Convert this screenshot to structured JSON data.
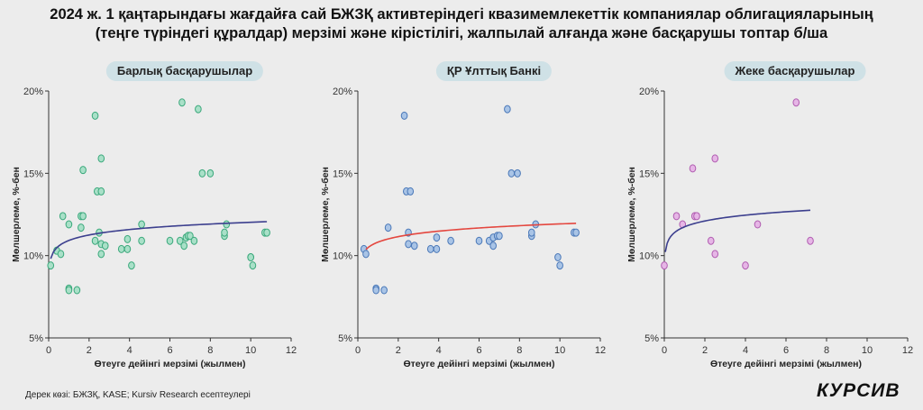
{
  "title_line1": "2024 ж. 1 қаңтарындағы жағдайға сай БЖЗҚ активтеріндегі квазимемлекеттік компаниялар облигацияларының",
  "title_line2": "(теңге түріндегі құралдар) мерзімі және кірістілігі, жалпылай алғанда және басқарушы топтар б/ша",
  "source": "Дерек көзі: БЖЗҚ, KASE; Kursiv Research есептеулері",
  "logo": "КУРСИВ",
  "chart_data": [
    {
      "type": "scatter",
      "title": "Барлық басқарушылар",
      "xlabel": "Өтеуге дейінгі мерзімі (жылмен)",
      "ylabel": "Мөлшерлеме, %-бен",
      "xlim": [
        0,
        12
      ],
      "ylim": [
        5,
        20
      ],
      "xticks": [
        0,
        2,
        4,
        6,
        8,
        10,
        12
      ],
      "yticks": [
        5,
        10,
        15,
        20
      ],
      "ytick_labels": [
        "5%",
        "10%",
        "15%",
        "20%"
      ],
      "colors": {
        "marker_fill": "#a9e0c8",
        "marker_stroke": "#3aa87b",
        "trend": "#3c3f8e"
      },
      "points": [
        [
          0.1,
          9.4
        ],
        [
          0.4,
          10.3
        ],
        [
          0.6,
          10.1
        ],
        [
          0.7,
          12.4
        ],
        [
          1.0,
          11.9
        ],
        [
          1.0,
          8.0
        ],
        [
          1.0,
          7.9
        ],
        [
          1.4,
          7.9
        ],
        [
          1.6,
          11.7
        ],
        [
          1.6,
          12.4
        ],
        [
          1.7,
          12.4
        ],
        [
          1.7,
          15.2
        ],
        [
          2.3,
          18.5
        ],
        [
          2.3,
          10.9
        ],
        [
          2.4,
          13.9
        ],
        [
          2.5,
          11.4
        ],
        [
          2.6,
          13.9
        ],
        [
          2.6,
          15.9
        ],
        [
          2.6,
          10.7
        ],
        [
          2.6,
          10.1
        ],
        [
          2.8,
          10.6
        ],
        [
          3.6,
          10.4
        ],
        [
          3.9,
          10.4
        ],
        [
          3.9,
          11.0
        ],
        [
          4.1,
          9.4
        ],
        [
          4.6,
          10.9
        ],
        [
          4.6,
          11.9
        ],
        [
          6.0,
          10.9
        ],
        [
          6.5,
          10.9
        ],
        [
          6.6,
          19.3
        ],
        [
          6.7,
          10.6
        ],
        [
          6.8,
          11.1
        ],
        [
          6.9,
          11.2
        ],
        [
          7.0,
          11.2
        ],
        [
          7.2,
          10.9
        ],
        [
          7.4,
          18.9
        ],
        [
          7.6,
          15.0
        ],
        [
          8.0,
          15.0
        ],
        [
          8.7,
          11.2
        ],
        [
          8.7,
          11.4
        ],
        [
          8.8,
          11.9
        ],
        [
          10.0,
          9.9
        ],
        [
          10.0,
          9.9
        ],
        [
          10.1,
          9.4
        ],
        [
          10.7,
          11.4
        ],
        [
          10.8,
          11.4
        ]
      ],
      "trend": {
        "xlim": [
          0.1,
          10.8
        ],
        "a": 10.92,
        "b": 0.48
      }
    },
    {
      "type": "scatter",
      "title": "ҚР Ұлттық Банкі",
      "xlabel": "Өтеуге дейінгі мерзімі (жылмен)",
      "ylabel": "Мөлшерлеме, %-бен",
      "xlim": [
        0,
        12
      ],
      "ylim": [
        5,
        20
      ],
      "xticks": [
        0,
        2,
        4,
        6,
        8,
        10,
        12
      ],
      "yticks": [
        5,
        10,
        15,
        20
      ],
      "ytick_labels": [
        "5%",
        "10%",
        "15%",
        "20%"
      ],
      "colors": {
        "marker_fill": "#a9c4e6",
        "marker_stroke": "#4a78b8",
        "trend": "#e4473f"
      },
      "points": [
        [
          0.3,
          10.4
        ],
        [
          0.4,
          10.1
        ],
        [
          0.9,
          8.0
        ],
        [
          0.9,
          7.9
        ],
        [
          1.3,
          7.9
        ],
        [
          1.5,
          11.7
        ],
        [
          2.3,
          18.5
        ],
        [
          2.4,
          13.9
        ],
        [
          2.5,
          11.4
        ],
        [
          2.5,
          10.7
        ],
        [
          2.6,
          13.9
        ],
        [
          2.8,
          10.6
        ],
        [
          3.6,
          10.4
        ],
        [
          3.9,
          10.4
        ],
        [
          3.9,
          11.1
        ],
        [
          4.6,
          10.9
        ],
        [
          6.0,
          10.9
        ],
        [
          6.5,
          10.9
        ],
        [
          6.7,
          10.6
        ],
        [
          6.7,
          11.1
        ],
        [
          6.9,
          11.2
        ],
        [
          7.0,
          11.2
        ],
        [
          7.4,
          18.9
        ],
        [
          7.6,
          15.0
        ],
        [
          7.9,
          15.0
        ],
        [
          8.6,
          11.2
        ],
        [
          8.6,
          11.4
        ],
        [
          8.8,
          11.9
        ],
        [
          9.9,
          9.9
        ],
        [
          10.0,
          9.4
        ],
        [
          10.7,
          11.4
        ],
        [
          10.8,
          11.4
        ]
      ],
      "trend": {
        "xlim": [
          0.4,
          10.8
        ],
        "a": 10.82,
        "b": 0.48
      }
    },
    {
      "type": "scatter",
      "title": "Жеке басқарушылар",
      "xlabel": "Өтеуге дейінгі мерзімі (жылмен)",
      "ylabel": "Мөлшерлеме, %-бен",
      "xlim": [
        0,
        12
      ],
      "ylim": [
        5,
        20
      ],
      "xticks": [
        0,
        2,
        4,
        6,
        8,
        10,
        12
      ],
      "yticks": [
        5,
        10,
        15,
        20
      ],
      "ytick_labels": [
        "5%",
        "10%",
        "15%",
        "20%"
      ],
      "colors": {
        "marker_fill": "#e6b6e6",
        "marker_stroke": "#b05cb0",
        "trend": "#3c3f8e"
      },
      "points": [
        [
          0.0,
          9.4
        ],
        [
          0.6,
          12.4
        ],
        [
          0.9,
          11.9
        ],
        [
          1.4,
          15.3
        ],
        [
          1.5,
          12.4
        ],
        [
          1.6,
          12.4
        ],
        [
          2.3,
          10.9
        ],
        [
          2.5,
          15.9
        ],
        [
          2.5,
          10.1
        ],
        [
          4.0,
          9.4
        ],
        [
          4.6,
          11.9
        ],
        [
          6.5,
          19.3
        ],
        [
          7.2,
          10.9
        ]
      ],
      "trend": {
        "xlim": [
          0.05,
          7.2
        ],
        "a": 11.75,
        "b": 0.51
      }
    }
  ]
}
